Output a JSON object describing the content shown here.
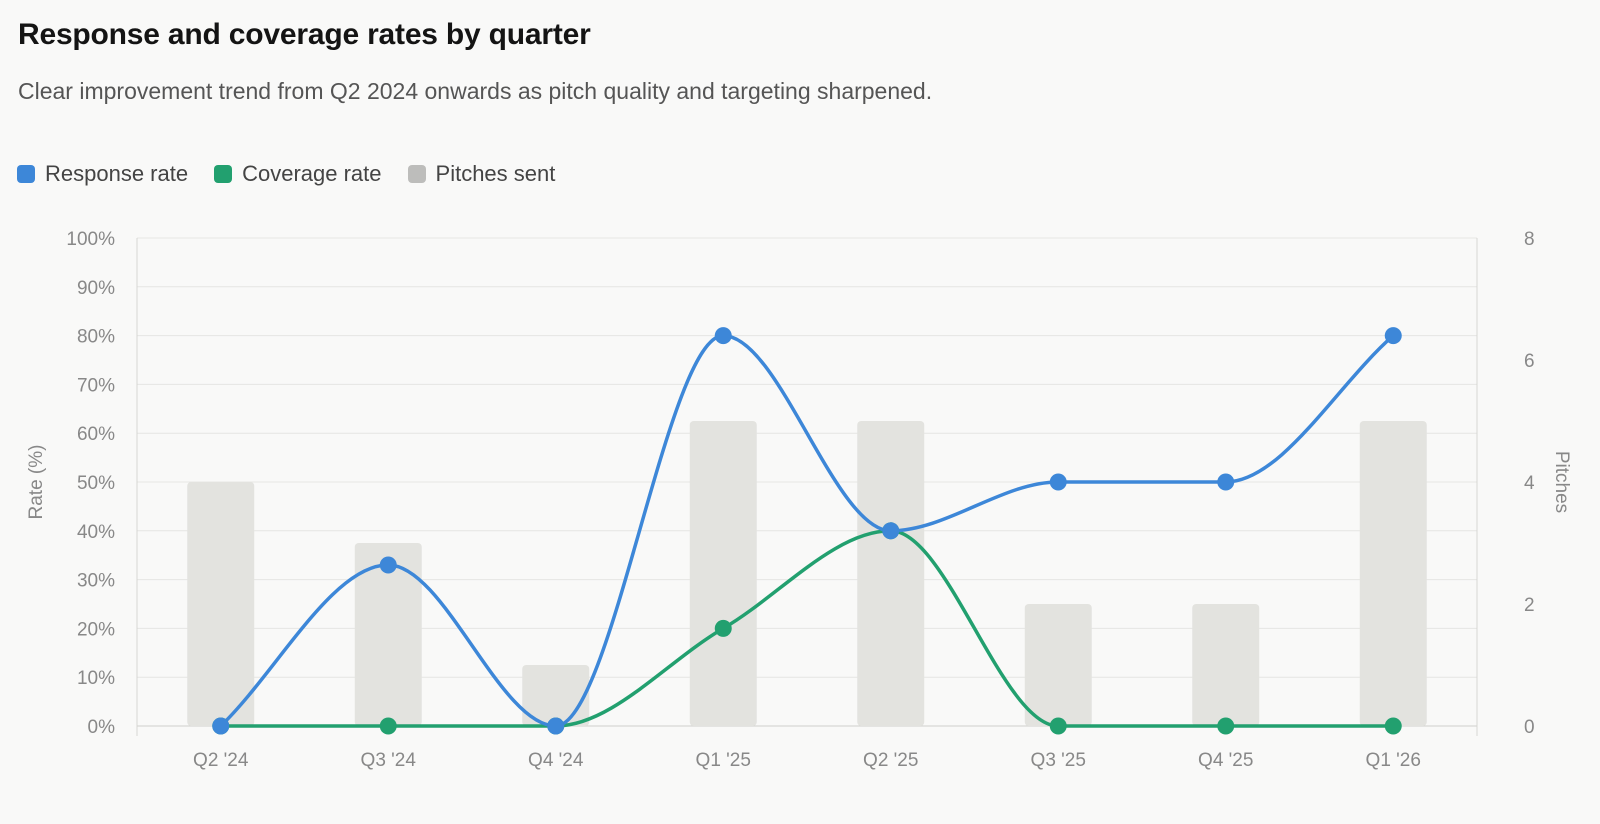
{
  "header": {
    "title": "Response and coverage rates by quarter",
    "subtitle": "Clear improvement trend from Q2 2024 onwards as pitch quality and targeting sharpened."
  },
  "legend": [
    {
      "label": "Response rate",
      "color": "#3d87d8"
    },
    {
      "label": "Coverage rate",
      "color": "#22a06f"
    },
    {
      "label": "Pitches sent",
      "color": "#bdbdbb"
    }
  ],
  "chart_data": {
    "type": "bar",
    "categories": [
      "Q2 '24",
      "Q3 '24",
      "Q4 '24",
      "Q1 '25",
      "Q2 '25",
      "Q3 '25",
      "Q4 '25",
      "Q1 '26"
    ],
    "series": [
      {
        "name": "Response rate",
        "type": "line",
        "axis": "left",
        "color": "#3d87d8",
        "values": [
          0,
          33,
          0,
          80,
          40,
          50,
          50,
          80
        ]
      },
      {
        "name": "Coverage rate",
        "type": "line",
        "axis": "left",
        "color": "#22a06f",
        "values": [
          0,
          0,
          0,
          20,
          40,
          0,
          0,
          0
        ]
      },
      {
        "name": "Pitches sent",
        "type": "bar",
        "axis": "right",
        "color": "#e3e3df",
        "values": [
          4,
          3,
          1,
          5,
          5,
          2,
          2,
          5
        ]
      }
    ],
    "ylabel_left": "Rate (%)",
    "ylabel_right": "Pitches",
    "ylim_left": [
      0,
      100
    ],
    "ylim_right": [
      0,
      8
    ],
    "yticks_left": [
      "0%",
      "10%",
      "20%",
      "30%",
      "40%",
      "50%",
      "60%",
      "70%",
      "80%",
      "90%",
      "100%"
    ],
    "yticks_right": [
      "0",
      "2",
      "4",
      "6",
      "8"
    ],
    "grid": true,
    "legend_position": "top-left"
  }
}
